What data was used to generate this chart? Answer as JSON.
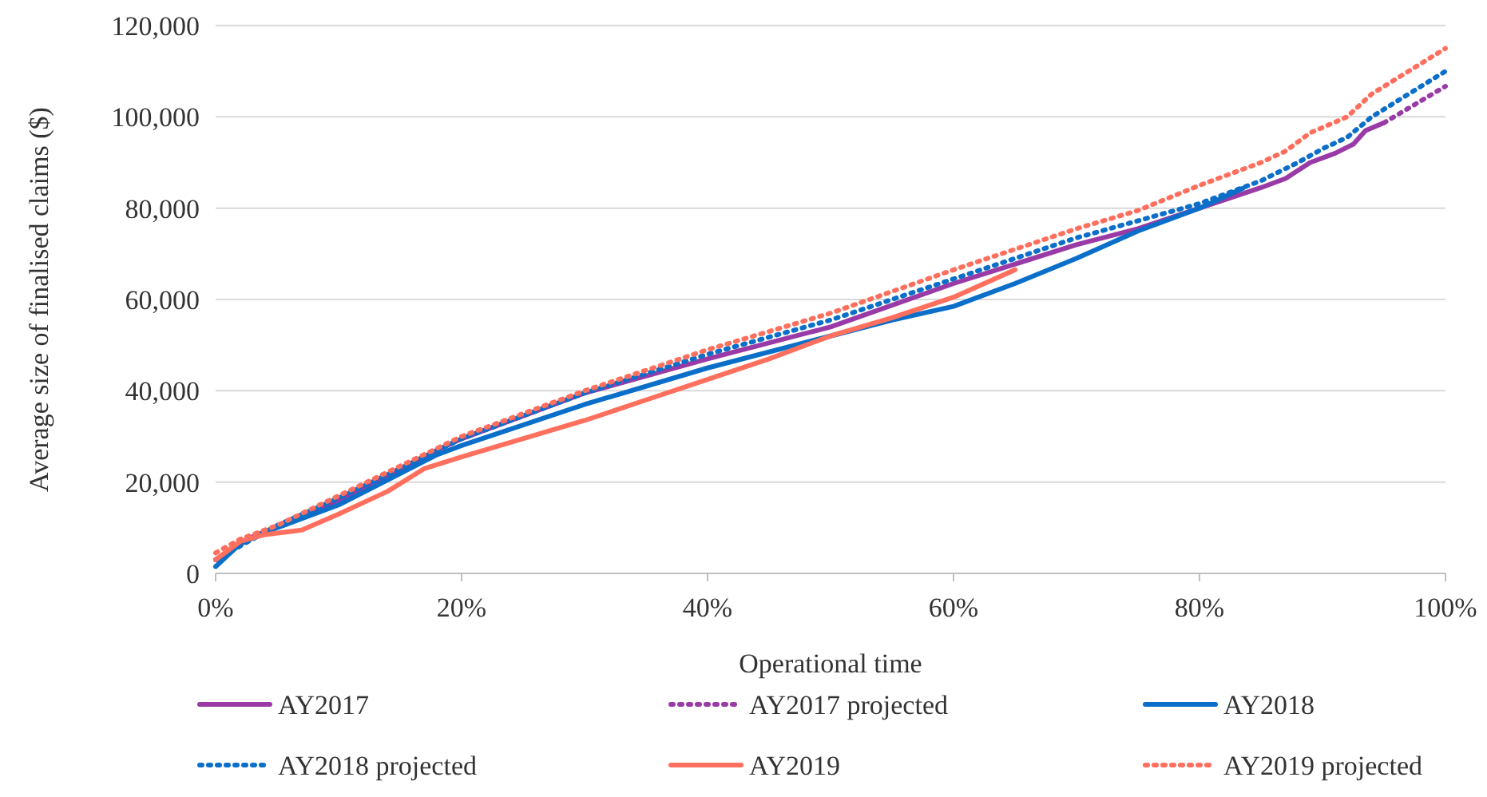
{
  "chart_data": {
    "type": "line",
    "xlabel": "Operational time",
    "ylabel": "Average size of finalised claims ($)",
    "xlim": [
      0,
      100
    ],
    "ylim": [
      0,
      120000
    ],
    "xticks": [
      {
        "value": 0,
        "label": "0%"
      },
      {
        "value": 20,
        "label": "20%"
      },
      {
        "value": 40,
        "label": "40%"
      },
      {
        "value": 60,
        "label": "60%"
      },
      {
        "value": 80,
        "label": "80%"
      },
      {
        "value": 100,
        "label": "100%"
      }
    ],
    "yticks": [
      {
        "value": 0,
        "label": "0"
      },
      {
        "value": 20000,
        "label": "20,000"
      },
      {
        "value": 40000,
        "label": "40,000"
      },
      {
        "value": 60000,
        "label": "60,000"
      },
      {
        "value": 80000,
        "label": "80,000"
      },
      {
        "value": 100000,
        "label": "100,000"
      },
      {
        "value": 120000,
        "label": "120,000"
      }
    ],
    "grid": "y",
    "legend": "bottom",
    "series": [
      {
        "name": "AY2017",
        "color": "#9a3aa6",
        "line_style": "solid",
        "x": [
          0,
          3,
          7,
          10,
          18,
          20,
          30,
          40,
          50,
          60,
          70,
          75,
          80,
          85,
          87,
          89,
          91,
          92.5,
          93.5,
          95
        ],
        "values": [
          3000,
          8000,
          12500,
          16000,
          27000,
          29500,
          39500,
          47000,
          54000,
          63500,
          72000,
          75500,
          80000,
          84500,
          86500,
          90000,
          92000,
          94000,
          97000,
          98700
        ]
      },
      {
        "name": "AY2017 projected",
        "color": "#9a3aa6",
        "line_style": "dotted",
        "x": [
          95,
          100
        ],
        "values": [
          98700,
          106700
        ]
      },
      {
        "name": "AY2018",
        "color": "#0b6fc9",
        "line_style": "solid",
        "x": [
          0,
          2,
          5,
          8,
          10,
          18,
          20,
          30,
          40,
          50,
          55,
          60,
          65,
          70,
          75,
          80,
          83.5
        ],
        "values": [
          1500,
          6500,
          10000,
          13000,
          15000,
          26000,
          28000,
          37000,
          45000,
          52000,
          55500,
          58500,
          63500,
          69000,
          75000,
          80000,
          84300
        ]
      },
      {
        "name": "AY2018 projected",
        "color": "#0b6fc9",
        "line_style": "dotted",
        "x": [
          0,
          5,
          10,
          20,
          30,
          40,
          50,
          60,
          70,
          80,
          85,
          88,
          90,
          92,
          94,
          100
        ],
        "values": [
          3000,
          10500,
          16500,
          29500,
          39500,
          48000,
          55500,
          64500,
          73500,
          81000,
          86000,
          90000,
          93000,
          95500,
          100000,
          110000
        ]
      },
      {
        "name": "AY2019",
        "color": "#ff6f5e",
        "line_style": "solid",
        "x": [
          0,
          2,
          4,
          7,
          10,
          14,
          17,
          20,
          30,
          35,
          40,
          45,
          50,
          55,
          60,
          65
        ],
        "values": [
          3000,
          7000,
          8500,
          9500,
          13000,
          18000,
          23000,
          25500,
          33500,
          38000,
          42500,
          47000,
          52000,
          56000,
          60500,
          66500
        ]
      },
      {
        "name": "AY2019 projected",
        "color": "#ff6f5e",
        "line_style": "dotted",
        "x": [
          0,
          2,
          5,
          10,
          20,
          30,
          40,
          50,
          60,
          70,
          75,
          80,
          85,
          87,
          89,
          92,
          94,
          100
        ],
        "values": [
          4500,
          7500,
          10500,
          17000,
          30000,
          40000,
          49000,
          57000,
          66500,
          75500,
          79500,
          85000,
          90000,
          92500,
          96500,
          100000,
          105000,
          115000
        ]
      }
    ]
  }
}
